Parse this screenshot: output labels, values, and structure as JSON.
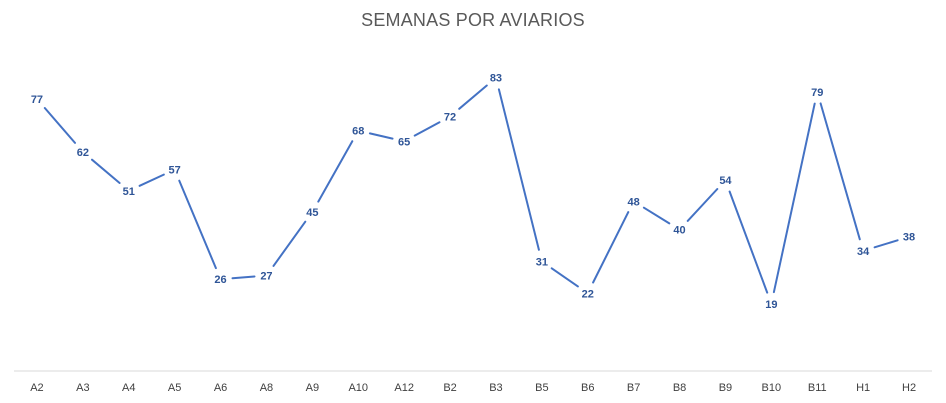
{
  "chart_data": {
    "type": "line",
    "title": "SEMANAS POR AVIARIOS",
    "xlabel": "",
    "ylabel": "",
    "categories": [
      "A2",
      "A3",
      "A4",
      "A5",
      "A6",
      "A8",
      "A9",
      "A10",
      "A12",
      "B2",
      "B3",
      "B5",
      "B6",
      "B7",
      "B8",
      "B9",
      "B10",
      "B11",
      "H1",
      "H2"
    ],
    "series": [
      {
        "values": [
          77,
          62,
          51,
          57,
          26,
          27,
          45,
          68,
          65,
          72,
          83,
          31,
          22,
          48,
          40,
          54,
          19,
          79,
          34,
          38
        ]
      }
    ],
    "ylim": [
      0,
      90
    ],
    "grid": false,
    "legend": "none",
    "data_labels": true,
    "colors": {
      "line": "#4472C4",
      "label": "#2F5597",
      "axis": "#D9D9D9",
      "title": "#595959",
      "tick": "#404040"
    }
  }
}
